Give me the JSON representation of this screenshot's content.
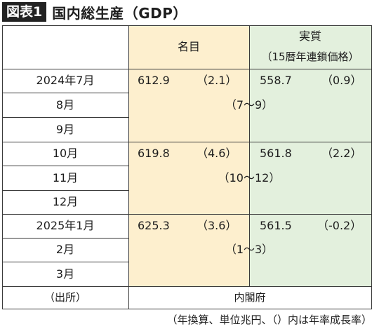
{
  "header": {
    "badge": "図表1",
    "title": "国内総生産（GDP）"
  },
  "columns": {
    "nominal": "名目",
    "real_title": "実質",
    "real_sub": "（15暦年連鎖価格）"
  },
  "rows": [
    {
      "label": "2024年7月",
      "nominal": "612.9",
      "nominal_rate": "（2.1）",
      "real": "558.7",
      "real_rate": "（0.9）"
    },
    {
      "label": "8月",
      "range": "（7〜9）"
    },
    {
      "label": "9月"
    },
    {
      "label": "10月",
      "nominal": "619.8",
      "nominal_rate": "（4.6）",
      "real": "561.8",
      "real_rate": "（2.2）"
    },
    {
      "label": "11月",
      "range": "（10〜12）"
    },
    {
      "label": "12月"
    },
    {
      "label": "2025年1月",
      "nominal": "625.3",
      "nominal_rate": "（3.6）",
      "real": "561.5",
      "real_rate": "（-0.2）"
    },
    {
      "label": "2月",
      "range": "（1〜3）"
    },
    {
      "label": "3月"
    }
  ],
  "source": {
    "label": "（出所）",
    "value": "内閣府"
  },
  "footnote": "（年換算、単位兆円、（）内は年率成長率）",
  "colors": {
    "nominal_bg": "#fdefce",
    "real_bg": "#e3f0dd",
    "border": "#3a3a3a"
  }
}
